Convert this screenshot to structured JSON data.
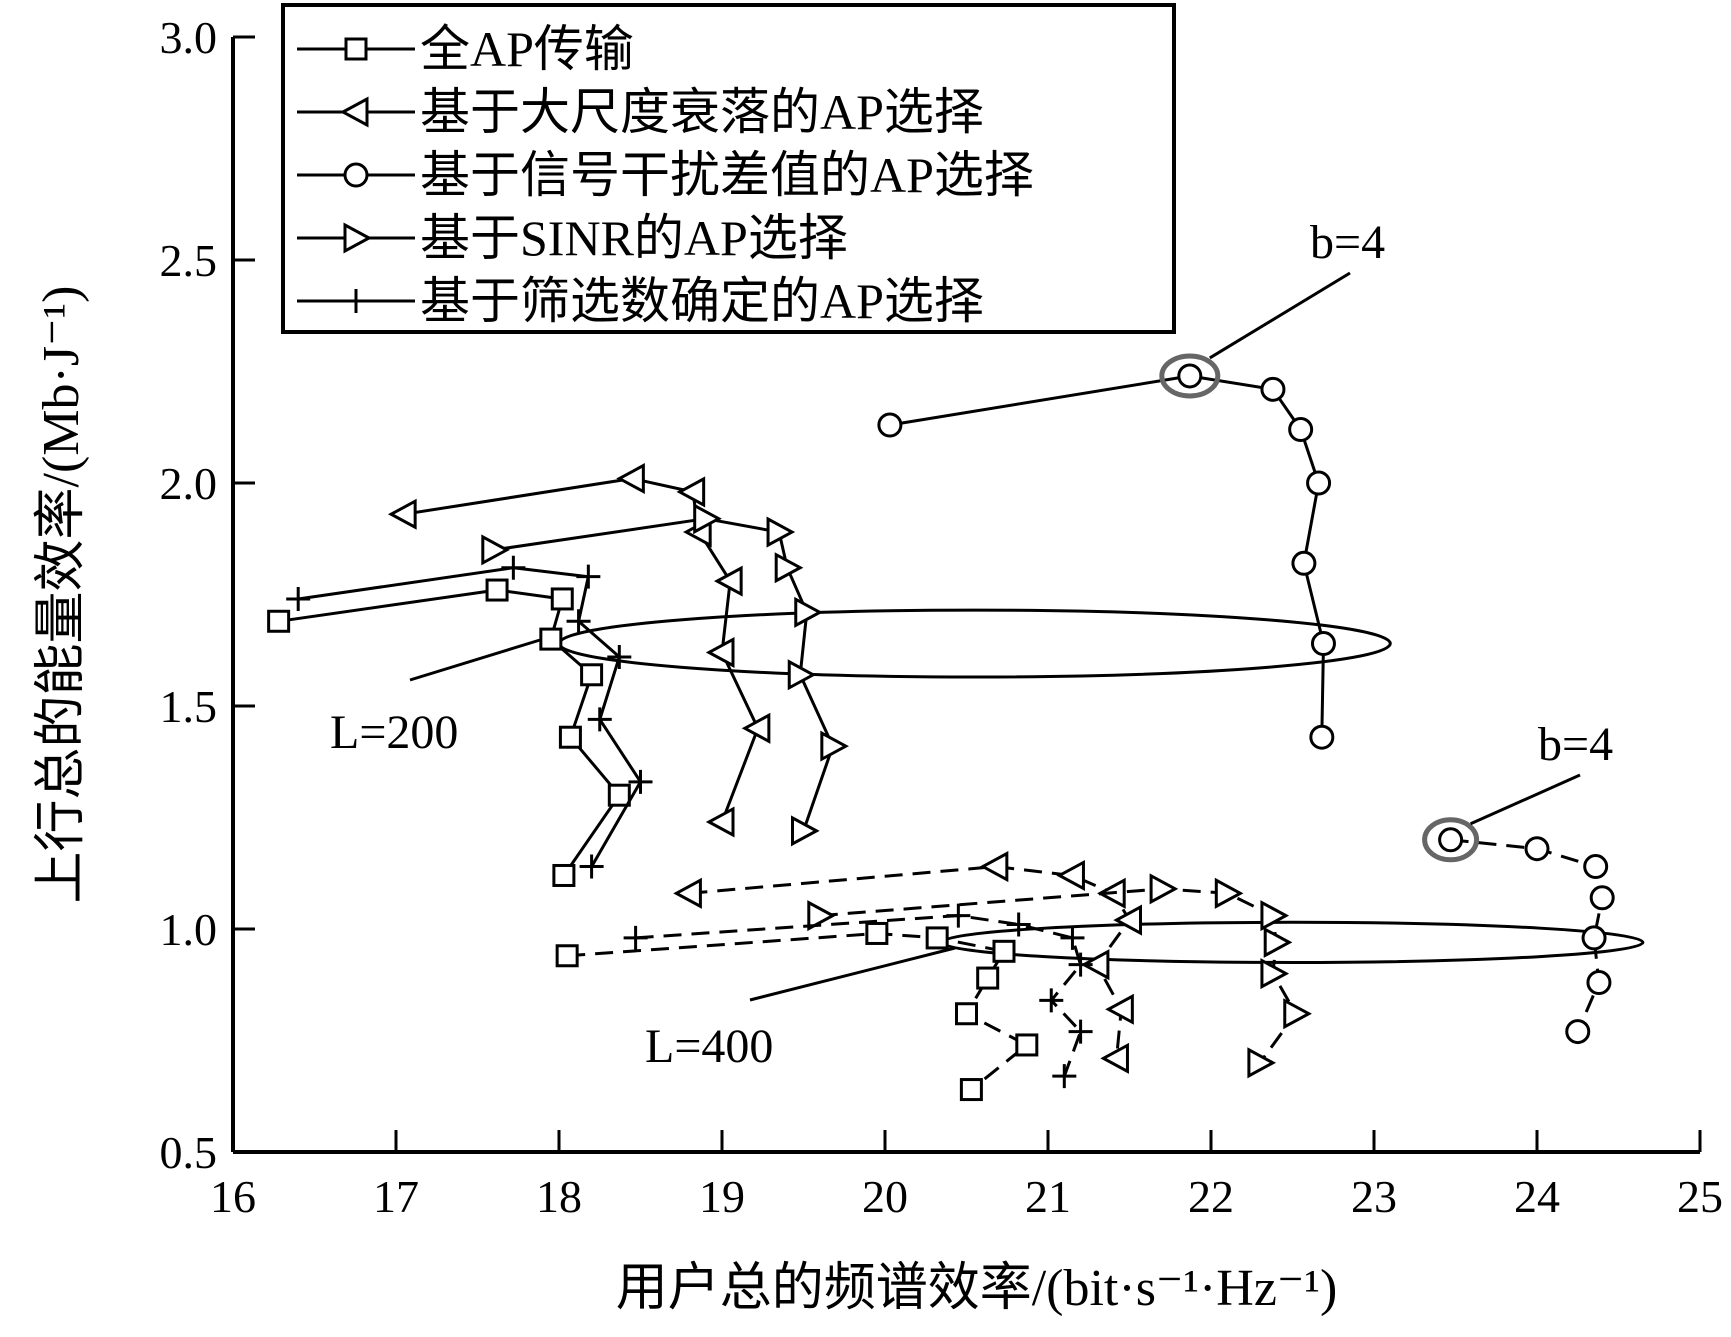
{
  "chart_data": {
    "type": "line",
    "xlabel": "用户总的频谱效率/(bit·s⁻¹·Hz⁻¹)",
    "ylabel": "上行总的能量效率/(Mb·J⁻¹)",
    "xlim": [
      16,
      25
    ],
    "ylim": [
      0.5,
      3.0
    ],
    "x_ticks": [
      "16",
      "17",
      "18",
      "19",
      "20",
      "21",
      "22",
      "23",
      "24",
      "25"
    ],
    "y_ticks": [
      "0.5",
      "1.0",
      "1.5",
      "2.0",
      "2.5",
      "3.0"
    ],
    "legend": {
      "position": "top-left",
      "entries": [
        {
          "name": "全AP传输",
          "marker": "square"
        },
        {
          "name": "基于大尺度衰落的AP选择",
          "marker": "triangle-left"
        },
        {
          "name": "基于信号干扰差值的AP选择",
          "marker": "circle"
        },
        {
          "name": "基于SINR的AP选择",
          "marker": "triangle-right"
        },
        {
          "name": "基于筛选数确定的AP选择",
          "marker": "plus"
        }
      ]
    },
    "groups": [
      {
        "label": "L=200",
        "line_style": "solid"
      },
      {
        "label": "L=400",
        "line_style": "dashed"
      }
    ],
    "series": [
      {
        "name": "全AP传输",
        "group": "L=200",
        "marker": "square",
        "dashed": false,
        "points": [
          [
            16.28,
            1.69
          ],
          [
            17.62,
            1.76
          ],
          [
            18.02,
            1.74
          ],
          [
            17.95,
            1.65
          ],
          [
            18.2,
            1.57
          ],
          [
            18.07,
            1.43
          ],
          [
            18.37,
            1.3
          ],
          [
            18.03,
            1.12
          ]
        ]
      },
      {
        "name": "基于大尺度衰落的AP选择",
        "group": "L=200",
        "marker": "triangle-left",
        "dashed": false,
        "points": [
          [
            17.05,
            1.93
          ],
          [
            18.45,
            2.01
          ],
          [
            18.82,
            1.98
          ],
          [
            18.86,
            1.89
          ],
          [
            19.05,
            1.78
          ],
          [
            19.0,
            1.62
          ],
          [
            19.22,
            1.45
          ],
          [
            19.0,
            1.24
          ]
        ]
      },
      {
        "name": "基于信号干扰差值的AP选择",
        "group": "L=200",
        "marker": "circle",
        "dashed": false,
        "points": [
          [
            20.03,
            2.13
          ],
          [
            21.87,
            2.24
          ],
          [
            22.38,
            2.21
          ],
          [
            22.55,
            2.12
          ],
          [
            22.66,
            2.0
          ],
          [
            22.57,
            1.82
          ],
          [
            22.69,
            1.64
          ],
          [
            22.68,
            1.43
          ]
        ]
      },
      {
        "name": "基于SINR的AP选择",
        "group": "L=200",
        "marker": "triangle-right",
        "dashed": false,
        "points": [
          [
            17.6,
            1.85
          ],
          [
            18.9,
            1.92
          ],
          [
            19.35,
            1.89
          ],
          [
            19.4,
            1.81
          ],
          [
            19.52,
            1.71
          ],
          [
            19.48,
            1.57
          ],
          [
            19.68,
            1.41
          ],
          [
            19.5,
            1.22
          ]
        ]
      },
      {
        "name": "基于筛选数确定的AP选择",
        "group": "L=200",
        "marker": "plus",
        "dashed": false,
        "points": [
          [
            16.4,
            1.74
          ],
          [
            17.72,
            1.81
          ],
          [
            18.18,
            1.79
          ],
          [
            18.12,
            1.69
          ],
          [
            18.37,
            1.61
          ],
          [
            18.25,
            1.47
          ],
          [
            18.5,
            1.33
          ],
          [
            18.2,
            1.14
          ]
        ]
      },
      {
        "name": "全AP传输",
        "group": "L=400",
        "marker": "square",
        "dashed": true,
        "points": [
          [
            18.05,
            0.94
          ],
          [
            19.95,
            0.99
          ],
          [
            20.32,
            0.98
          ],
          [
            20.73,
            0.95
          ],
          [
            20.63,
            0.89
          ],
          [
            20.5,
            0.81
          ],
          [
            20.87,
            0.74
          ],
          [
            20.53,
            0.64
          ]
        ]
      },
      {
        "name": "基于大尺度衰落的AP选择",
        "group": "L=400",
        "marker": "triangle-left",
        "dashed": true,
        "points": [
          [
            18.8,
            1.08
          ],
          [
            20.68,
            1.14
          ],
          [
            21.15,
            1.12
          ],
          [
            21.4,
            1.08
          ],
          [
            21.5,
            1.02
          ],
          [
            21.3,
            0.92
          ],
          [
            21.45,
            0.82
          ],
          [
            21.42,
            0.71
          ]
        ]
      },
      {
        "name": "基于信号干扰差值的AP选择",
        "group": "L=400",
        "marker": "circle",
        "dashed": true,
        "points": [
          [
            23.47,
            1.2
          ],
          [
            24.0,
            1.18
          ],
          [
            24.36,
            1.14
          ],
          [
            24.4,
            1.07
          ],
          [
            24.35,
            0.98
          ],
          [
            24.38,
            0.88
          ],
          [
            24.25,
            0.77
          ]
        ]
      },
      {
        "name": "基于SINR的AP选择",
        "group": "L=400",
        "marker": "triangle-right",
        "dashed": true,
        "points": [
          [
            19.6,
            1.03
          ],
          [
            21.7,
            1.09
          ],
          [
            22.1,
            1.08
          ],
          [
            22.38,
            1.03
          ],
          [
            22.4,
            0.97
          ],
          [
            22.38,
            0.9
          ],
          [
            22.52,
            0.81
          ],
          [
            22.3,
            0.7
          ]
        ]
      },
      {
        "name": "基于筛选数确定的AP选择",
        "group": "L=400",
        "marker": "plus",
        "dashed": true,
        "points": [
          [
            18.47,
            0.98
          ],
          [
            20.45,
            1.03
          ],
          [
            20.82,
            1.01
          ],
          [
            21.15,
            0.98
          ],
          [
            21.2,
            0.92
          ],
          [
            21.02,
            0.84
          ],
          [
            21.2,
            0.77
          ],
          [
            21.1,
            0.67
          ]
        ]
      }
    ],
    "annotations": [
      {
        "text": "L=200",
        "target": "ellipse at y≈1.64"
      },
      {
        "text": "L=400",
        "target": "ellipse at y≈0.97"
      },
      {
        "text": "b=4",
        "target": "circled point (21.87, 2.24)"
      },
      {
        "text": "b=4",
        "target": "circled point (23.47, 1.20)"
      }
    ],
    "grid": false
  }
}
